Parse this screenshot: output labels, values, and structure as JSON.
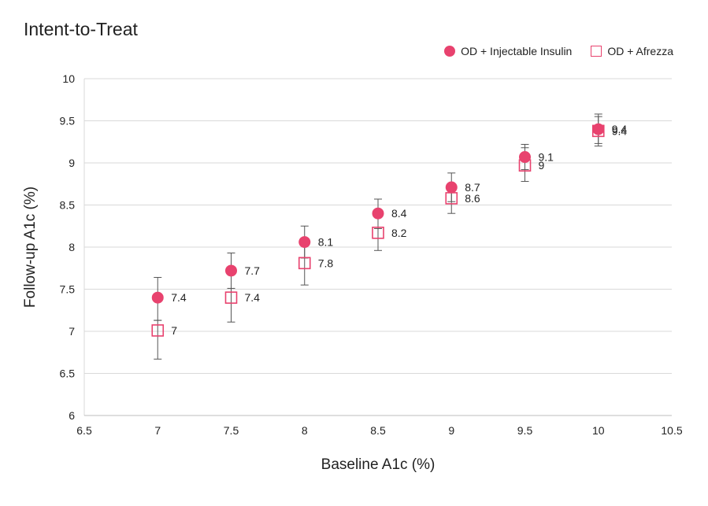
{
  "chart_data": {
    "type": "scatter",
    "title": "Intent-to-Treat",
    "xlabel": "Baseline A1c (%)",
    "ylabel": "Follow-up A1c (%)",
    "xlim": [
      6.5,
      10.5
    ],
    "ylim": [
      6,
      10
    ],
    "x_ticks": [
      "6.5",
      "7",
      "7.5",
      "8",
      "8.5",
      "9",
      "9.5",
      "10",
      "10.5"
    ],
    "y_ticks": [
      "6",
      "6.5",
      "7",
      "7.5",
      "8",
      "8.5",
      "9",
      "9.5",
      "10"
    ],
    "grid": "horizontal",
    "legend_position": "top-right",
    "series": [
      {
        "name": "OD + Injectable Insulin",
        "marker": "circle",
        "color": "#e8426e",
        "x": [
          7,
          7.5,
          8,
          8.5,
          9,
          9.5,
          10
        ],
        "y": [
          7.4,
          7.72,
          8.06,
          8.4,
          8.71,
          9.07,
          9.4
        ],
        "labels": [
          "7.4",
          "7.7",
          "8.1",
          "8.4",
          "8.7",
          "9.1",
          "9.4"
        ],
        "error_upper": [
          7.64,
          7.93,
          8.25,
          8.57,
          8.88,
          9.22,
          9.58
        ],
        "error_lower": [
          7.13,
          7.51,
          7.87,
          8.22,
          8.54,
          8.92,
          9.23
        ]
      },
      {
        "name": "OD + Afrezza",
        "marker": "square-open",
        "color": "#e8426e",
        "x": [
          7,
          7.5,
          8,
          8.5,
          9,
          9.5,
          10
        ],
        "y": [
          7.01,
          7.4,
          7.81,
          8.17,
          8.58,
          8.97,
          9.38
        ],
        "labels": [
          "7",
          "7.4",
          "7.8",
          "8.2",
          "8.6",
          "9",
          "9.4"
        ],
        "error_upper": [
          7.13,
          7.71,
          8.06,
          8.37,
          8.75,
          9.18,
          9.55
        ],
        "error_lower": [
          6.67,
          7.11,
          7.55,
          7.96,
          8.4,
          8.78,
          9.2
        ]
      }
    ]
  }
}
